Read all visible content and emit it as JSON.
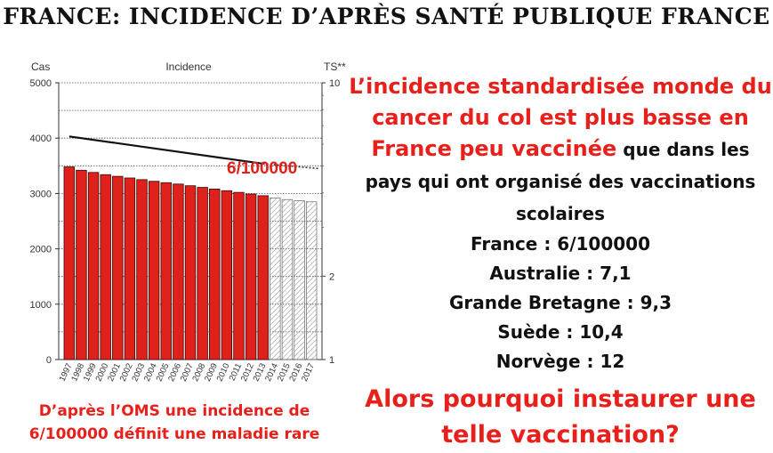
{
  "title": "FRANCE: INCIDENCE D’APRÈS SANTÉ PUBLIQUE FRANCE",
  "chart_data": {
    "type": "bar",
    "title": "Incidence",
    "ylabel_left": "Cas",
    "ylabel_right": "TS**",
    "ylim": [
      0,
      5000
    ],
    "yticks": [
      "0",
      "1000",
      "2000",
      "3000",
      "4000",
      "5000"
    ],
    "right_ticks": [
      "10",
      "2",
      "1"
    ],
    "right_log_scale": true,
    "right_ylim": [
      1,
      10
    ],
    "annotation": "6/100000",
    "categories": [
      "1997",
      "1998",
      "1999",
      "2000",
      "2001",
      "2002",
      "2003",
      "2004",
      "2005",
      "2006",
      "2007",
      "2008",
      "2009",
      "2010",
      "2011",
      "2012",
      "2013",
      "2014",
      "2015",
      "2016",
      "2017"
    ],
    "values": [
      3480,
      3420,
      3380,
      3340,
      3310,
      3280,
      3250,
      3220,
      3195,
      3170,
      3140,
      3110,
      3080,
      3050,
      3020,
      2990,
      2960,
      2920,
      2890,
      2870,
      2850
    ],
    "projected_from_index": 17,
    "bar_color": "#e0201b",
    "rate_line": {
      "x": [
        "1997",
        "2013"
      ],
      "y": [
        6.4,
        5.1
      ],
      "projected_x": [
        "2013",
        "2017"
      ],
      "projected_y": [
        5.1,
        4.9
      ]
    },
    "grid": true
  },
  "left_caption": {
    "line1": "D’après l’OMS une incidence de",
    "line2": "6/100000 définit une maladie rare"
  },
  "right_text": {
    "lead_red": "L’incidence standardisée monde du cancer du col est plus basse en France peu vaccinée",
    "lead_black": " que dans les pays qui ont organisé des vaccinations scolaires",
    "countries": [
      "France : 6/100000",
      "Australie : 7,1",
      "Grande Bretagne : 9,3",
      "Suède : 10,4",
      "Norvège : 12"
    ],
    "question": "Alors pourquoi instaurer une telle vaccination?"
  }
}
